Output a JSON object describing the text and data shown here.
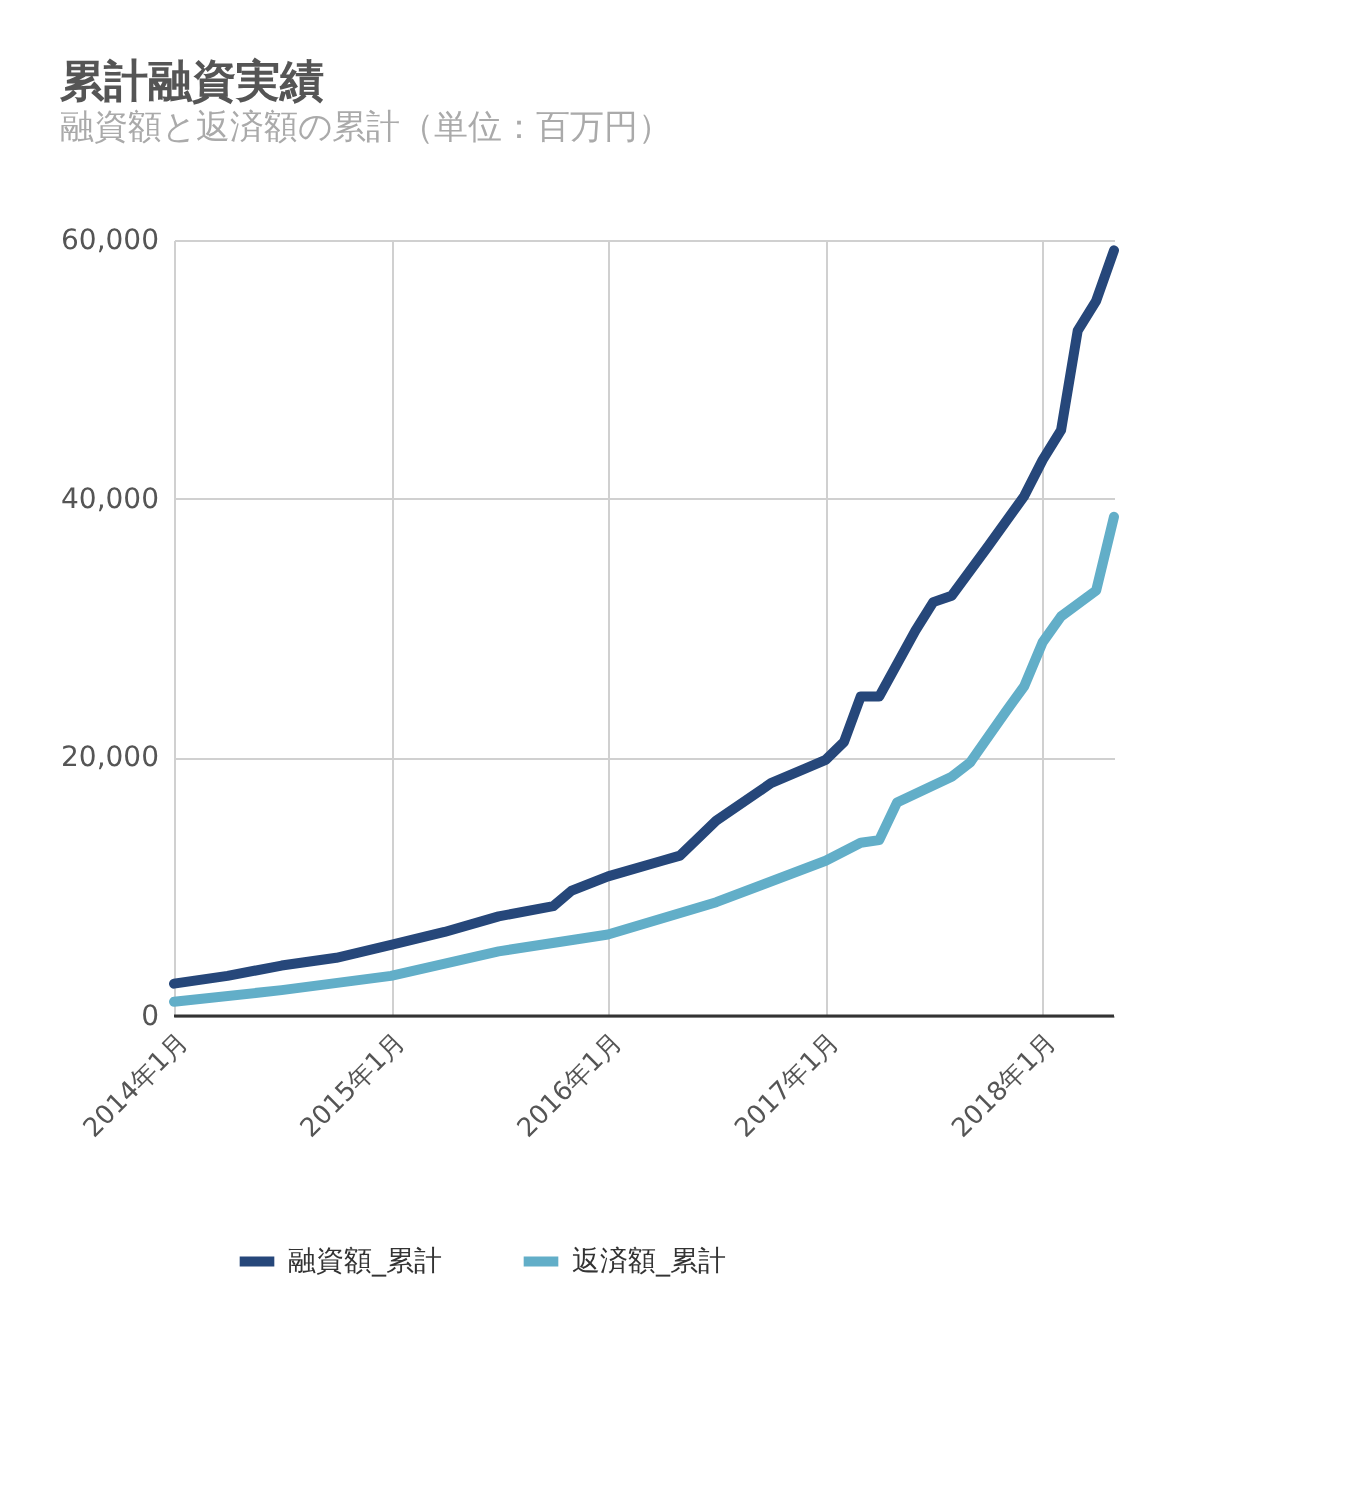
{
  "chart_data": {
    "type": "line",
    "title": "累計融資実績",
    "subtitle": "融資額と返済額の累計（単位：百万円）",
    "xlim": [
      "2014-01",
      "2018-05"
    ],
    "xticks": [
      {
        "value": "2014-01",
        "label": "2014年1月"
      },
      {
        "value": "2015-01",
        "label": "2015年1月"
      },
      {
        "value": "2016-01",
        "label": "2016年1月"
      },
      {
        "value": "2017-01",
        "label": "2017年1月"
      },
      {
        "value": "2018-01",
        "label": "2018年1月"
      }
    ],
    "ylim": [
      0,
      60000
    ],
    "yticks": [
      {
        "value": 0,
        "label": "0"
      },
      {
        "value": 20000,
        "label": "20,000"
      },
      {
        "value": 40000,
        "label": "40,000"
      },
      {
        "value": 60000,
        "label": "60,000"
      }
    ],
    "grid": true,
    "legend": "bottom",
    "line_style": "solid",
    "marker": "none",
    "series": [
      {
        "name": "融資額_累計",
        "color": "#26477a",
        "x": [
          "2014-01",
          "2014-04",
          "2014-07",
          "2014-10",
          "2015-01",
          "2015-04",
          "2015-07",
          "2015-10",
          "2015-11",
          "2016-01",
          "2016-04",
          "2016-05",
          "2016-07",
          "2016-10",
          "2017-01",
          "2017-02",
          "2017-03",
          "2017-04",
          "2017-06",
          "2017-07",
          "2017-08",
          "2017-10",
          "2017-12",
          "2018-01",
          "2018-02",
          "2018-03",
          "2018-04",
          "2018-05"
        ],
        "values": [
          2500,
          3100,
          3900,
          4500,
          5500,
          6500,
          7700,
          8500,
          9700,
          10800,
          12000,
          12400,
          15100,
          18000,
          19800,
          21200,
          24700,
          24700,
          29800,
          32000,
          32500,
          36300,
          40200,
          43000,
          45300,
          53000,
          55300,
          59200
        ]
      },
      {
        "name": "返済額_累計",
        "color": "#62aec8",
        "x": [
          "2014-01",
          "2014-07",
          "2015-01",
          "2015-07",
          "2016-01",
          "2016-07",
          "2017-01",
          "2017-03",
          "2017-04",
          "2017-05",
          "2017-08",
          "2017-09",
          "2017-11",
          "2017-12",
          "2018-01",
          "2018-02",
          "2018-04",
          "2018-05"
        ],
        "values": [
          1100,
          2000,
          3100,
          5000,
          6300,
          8800,
          12000,
          13400,
          13600,
          16500,
          18500,
          19600,
          23600,
          25500,
          28900,
          30900,
          32900,
          38600
        ]
      }
    ]
  }
}
